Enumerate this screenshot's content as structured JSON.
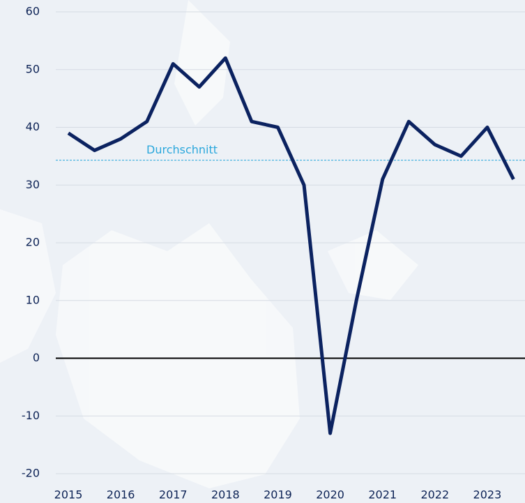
{
  "chart_data": {
    "type": "line",
    "x": [
      2015,
      2015.5,
      2016,
      2016.5,
      2017,
      2017.5,
      2018,
      2018.5,
      2019,
      2019.5,
      2020,
      2020.5,
      2021,
      2021.5,
      2022,
      2022.5,
      2023,
      2023.5
    ],
    "series": [
      {
        "name": null,
        "color": "#0b2260",
        "values": [
          39,
          36,
          38,
          41,
          51,
          47,
          52,
          41,
          40,
          30,
          -13,
          10,
          31,
          41,
          37,
          35,
          40,
          31
        ]
      }
    ],
    "average": {
      "label": "Durchschnitt",
      "value": 34.3,
      "color": "#2aa7dc"
    },
    "xlim": [
      2014.76,
      2023.72
    ],
    "xticks": [
      2015,
      2016,
      2017,
      2018,
      2019,
      2020,
      2021,
      2022,
      2023
    ],
    "ylim": [
      -20,
      60
    ],
    "yticks": [
      -20,
      -10,
      0,
      10,
      20,
      30,
      40,
      50,
      60
    ],
    "grid": true
  }
}
